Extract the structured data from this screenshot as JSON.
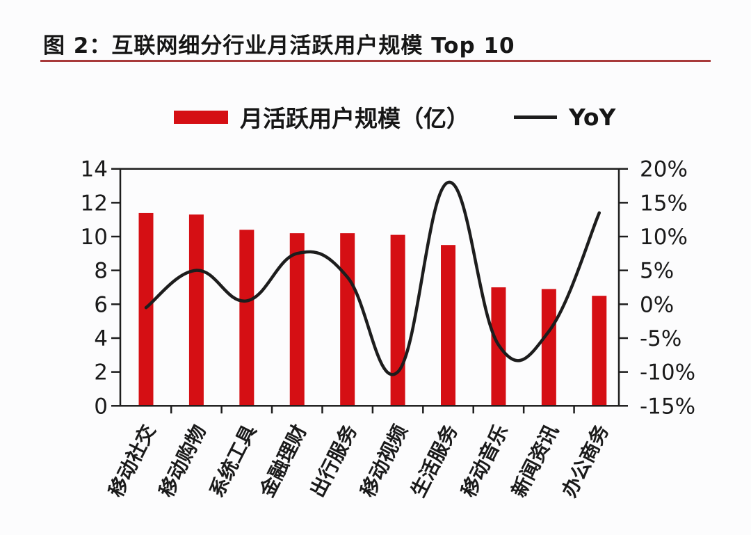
{
  "figure": {
    "title": "图 2：互联网细分行业月活跃用户规模 Top 10",
    "colors": {
      "bar_red": "#d50f14",
      "line_black": "#1d1d1d",
      "title_underline_red": "#a83a3a",
      "axis_text": "#1a1a1a"
    }
  },
  "legend": {
    "bar_label": "月活跃用户规模（亿）",
    "line_label": "YoY"
  },
  "chart_data": {
    "type": "bar",
    "subtype": "bar+line-combo",
    "title": "图 2：互联网细分行业月活跃用户规模 Top 10",
    "categories": [
      "移动社交",
      "移动购物",
      "系统工具",
      "金融理财",
      "出行服务",
      "移动视频",
      "生活服务",
      "移动音乐",
      "新闻资讯",
      "办公商务"
    ],
    "series": [
      {
        "name": "月活跃用户规模（亿）",
        "type": "bar",
        "axis": "left",
        "color": "#d50f14",
        "values": [
          11.4,
          11.3,
          10.4,
          10.2,
          10.2,
          10.1,
          9.5,
          7.0,
          6.9,
          6.5
        ]
      },
      {
        "name": "YoY",
        "type": "line",
        "axis": "right",
        "color": "#1d1d1d",
        "smoothed": true,
        "values_percent": [
          -0.5,
          5,
          0.5,
          7.5,
          4,
          -10,
          18,
          -6,
          -4,
          13.5
        ]
      }
    ],
    "left_axis": {
      "min": 0,
      "max": 14,
      "tick_labels": [
        "0",
        "2",
        "4",
        "6",
        "8",
        "10",
        "12",
        "14"
      ]
    },
    "right_axis": {
      "min_percent": -15,
      "max_percent": 20,
      "tick_labels": [
        "20%",
        "15%",
        "10%",
        "5%",
        "0%",
        "-5%",
        "-10%",
        "-15%"
      ]
    },
    "grid": false,
    "legend_position": "top",
    "xlabel": "",
    "ylabel_left": "月活跃用户规模（亿）",
    "ylabel_right": "YoY"
  }
}
